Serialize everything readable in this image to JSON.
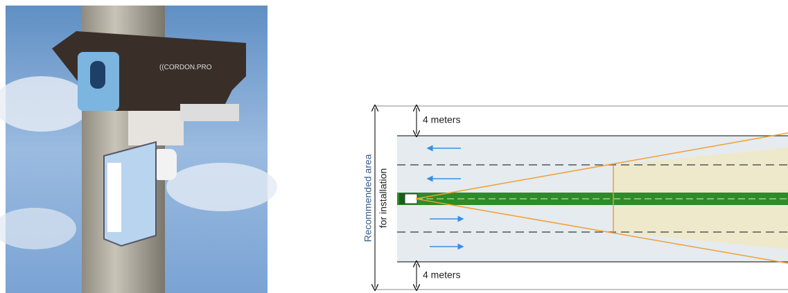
{
  "photo": {
    "brand_label": "((CORDON.PRO"
  },
  "diagram": {
    "top_offset": "4 meters",
    "bottom_offset": "4 meters",
    "side_label": [
      "Recommended area",
      "for installation"
    ]
  }
}
